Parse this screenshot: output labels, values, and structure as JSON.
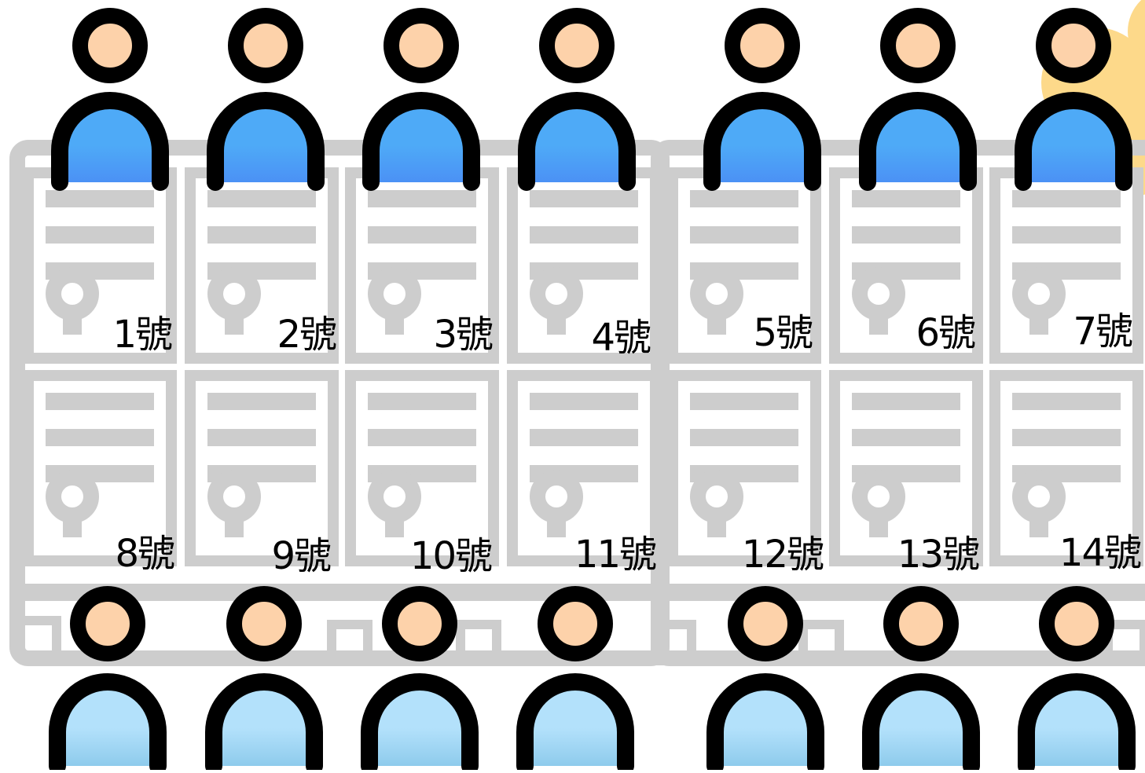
{
  "colors": {
    "cabinet_gray": "#cdcdcd",
    "outline": "#000000",
    "skin": "#fdd2aa",
    "shirt_blue_top": "#4eaaf7",
    "shirt_blue_top_shade": "#4b91f5",
    "shirt_blue_bottom": "#b3e1fb",
    "shirt_blue_bottom_shade": "#8ecbec",
    "cloud": "#fdd98a"
  },
  "icons": {
    "person": "person-icon",
    "cabinet": "storage-cabinet-icon",
    "lock": "lock-icon",
    "cloud": "cloud-decoration"
  },
  "lockers": {
    "top_row": [
      {
        "label": "1號"
      },
      {
        "label": "2號"
      },
      {
        "label": "3號"
      },
      {
        "label": "4號"
      },
      {
        "label": "5號"
      },
      {
        "label": "6號"
      },
      {
        "label": "7號"
      }
    ],
    "bottom_row": [
      {
        "label": "8號"
      },
      {
        "label": "9號"
      },
      {
        "label": "10號"
      },
      {
        "label": "11號"
      },
      {
        "label": "12號"
      },
      {
        "label": "13號"
      },
      {
        "label": "14號"
      }
    ]
  },
  "people": {
    "top_count": 7,
    "bottom_count": 7
  }
}
